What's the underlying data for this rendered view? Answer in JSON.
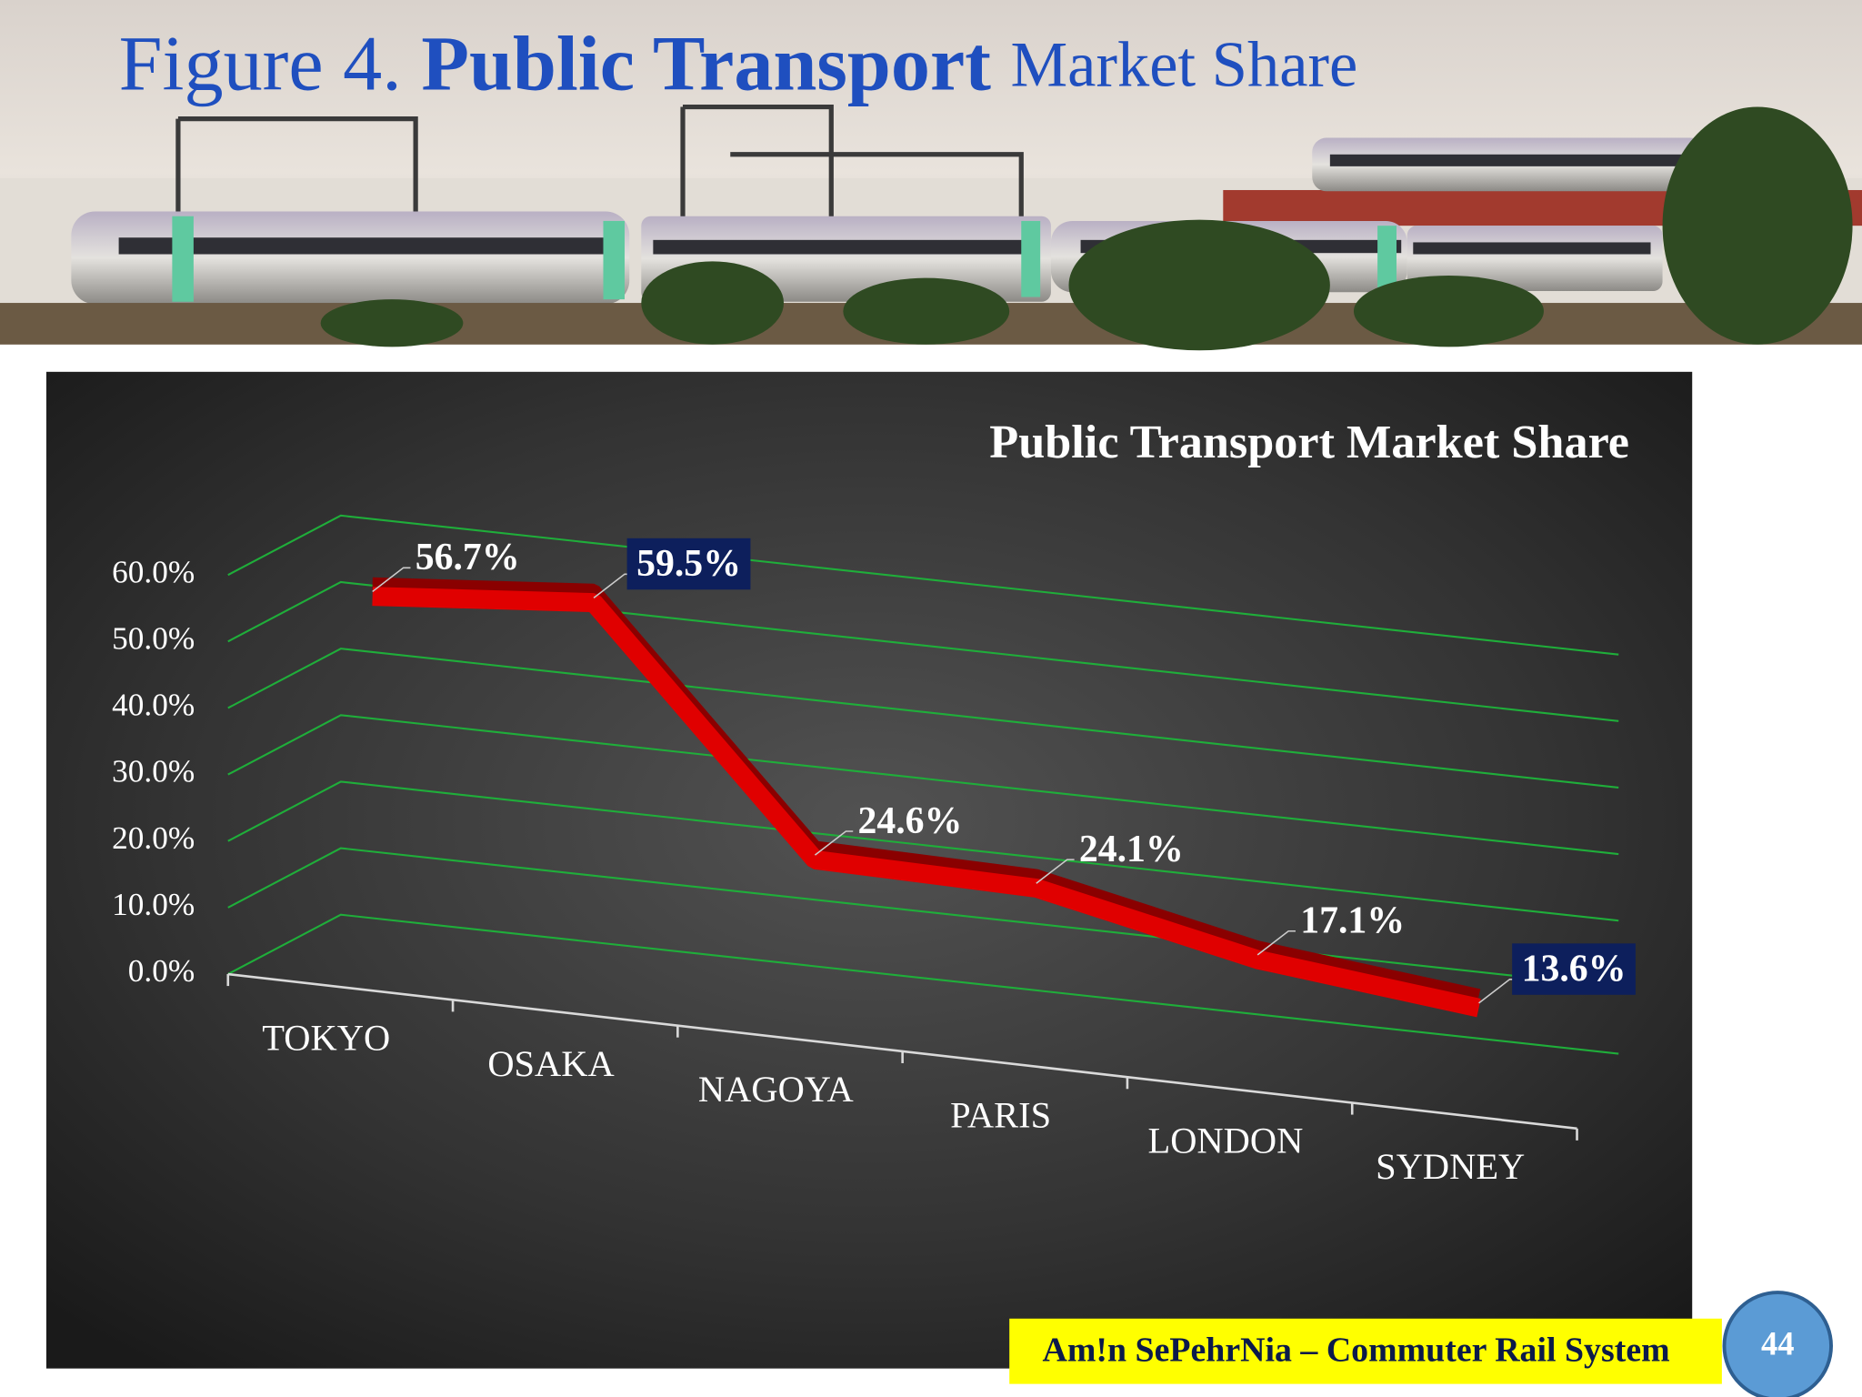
{
  "slide_title": [
    "Figure 4.",
    "Public Transport",
    "Market Share"
  ],
  "footer": "Am!n SePehrNia – Commuter Rail System",
  "page_number": "44",
  "chart_data": {
    "type": "line",
    "title": "Public Transport Market Share",
    "categories": [
      "TOKYO",
      "OSAKA",
      "NAGOYA",
      "PARIS",
      "LONDON",
      "SYDNEY"
    ],
    "values": [
      56.7,
      59.5,
      24.6,
      24.1,
      17.1,
      13.6
    ],
    "value_labels": [
      "56.7%",
      "59.5%",
      "24.6%",
      "24.1%",
      "17.1%",
      "13.6%"
    ],
    "color": "#e00000",
    "ylim": [
      0,
      60
    ],
    "yticks": [
      {
        "value": 0,
        "label": "0.0%"
      },
      {
        "value": 10,
        "label": "10.0%"
      },
      {
        "value": 20,
        "label": "20.0%"
      },
      {
        "value": 30,
        "label": "30.0%"
      },
      {
        "value": 40,
        "label": "40.0%"
      },
      {
        "value": 50,
        "label": "50.0%"
      },
      {
        "value": 60,
        "label": "60.0%"
      }
    ],
    "grid": true,
    "grid_color": "#1fae3a"
  }
}
